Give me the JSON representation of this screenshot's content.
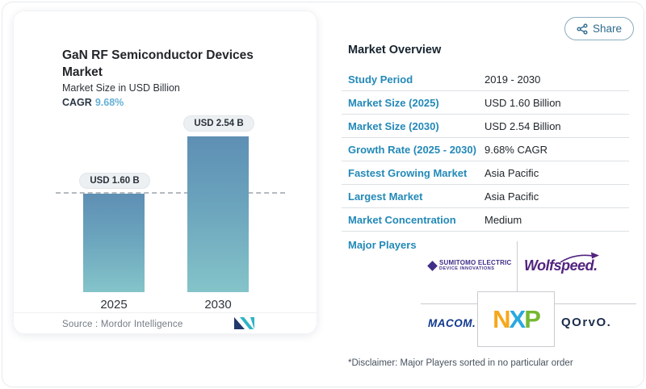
{
  "share": {
    "label": "Share"
  },
  "chart_panel": {
    "title_lines": [
      "GaN RF Semiconductor Devices",
      "Market"
    ],
    "subtitle": "Market Size in USD Billion",
    "cagr_label": "CAGR",
    "cagr_value": "9.68%",
    "source_text": "Source :  Mordor Intelligence"
  },
  "chart_data": {
    "type": "bar",
    "title": "GaN RF Semiconductor Devices Market",
    "subtitle": "Market Size in USD Billion",
    "unit": "USD Billion",
    "categories": [
      "2025",
      "2030"
    ],
    "values": [
      1.6,
      2.54
    ],
    "bar_labels": [
      "USD 1.60 B",
      "USD 2.54 B"
    ],
    "cagr_percent": 9.68,
    "reference_line_value": 1.6,
    "ylim": [
      0,
      2.54
    ],
    "grid": false,
    "bar_gradient": [
      "#5e8fb4",
      "#84c4c9"
    ]
  },
  "overview": {
    "heading": "Market Overview",
    "rows": [
      {
        "label": "Study Period",
        "value": "2019 - 2030"
      },
      {
        "label": "Market Size (2025)",
        "value": "USD 1.60 Billion"
      },
      {
        "label": "Market Size (2030)",
        "value": "USD 2.54 Billion"
      },
      {
        "label": "Growth Rate (2025 - 2030)",
        "value": "9.68% CAGR"
      },
      {
        "label": "Fastest Growing Market",
        "value": "Asia Pacific"
      },
      {
        "label": "Largest Market",
        "value": "Asia Pacific"
      },
      {
        "label": "Market Concentration",
        "value": "Medium"
      }
    ],
    "major_players_label": "Major Players",
    "players": {
      "sumitomo_line1": "SUMITOMO ELECTRIC",
      "sumitomo_line2": "DEVICE INNOVATIONS",
      "wolfspeed": "Wolfspeed.",
      "macom": "MACOM.",
      "nxp": {
        "n": "N",
        "x": "X",
        "p": "P"
      },
      "qorvo": "QOrvO."
    },
    "disclaimer": "*Disclaimer: Major Players sorted in no particular order"
  },
  "icons": {
    "share": "share-nodes-icon",
    "mordor_logo": "mordor-intelligence-logo"
  },
  "colors": {
    "accent_blue": "#2389b8",
    "cagr_blue": "#66b0d6",
    "bar_top": "#5e8fb4",
    "bar_bottom": "#84c4c9",
    "share_blue": "#2e6a8d",
    "sumitomo_purple": "#412d8a",
    "wolfspeed_purple": "#52247f",
    "macom_navy": "#10388f",
    "nxp_orange": "#f5a81c",
    "nxp_blue": "#29a8df",
    "nxp_green": "#76b832",
    "qorvo_navy": "#1b2c4a"
  }
}
